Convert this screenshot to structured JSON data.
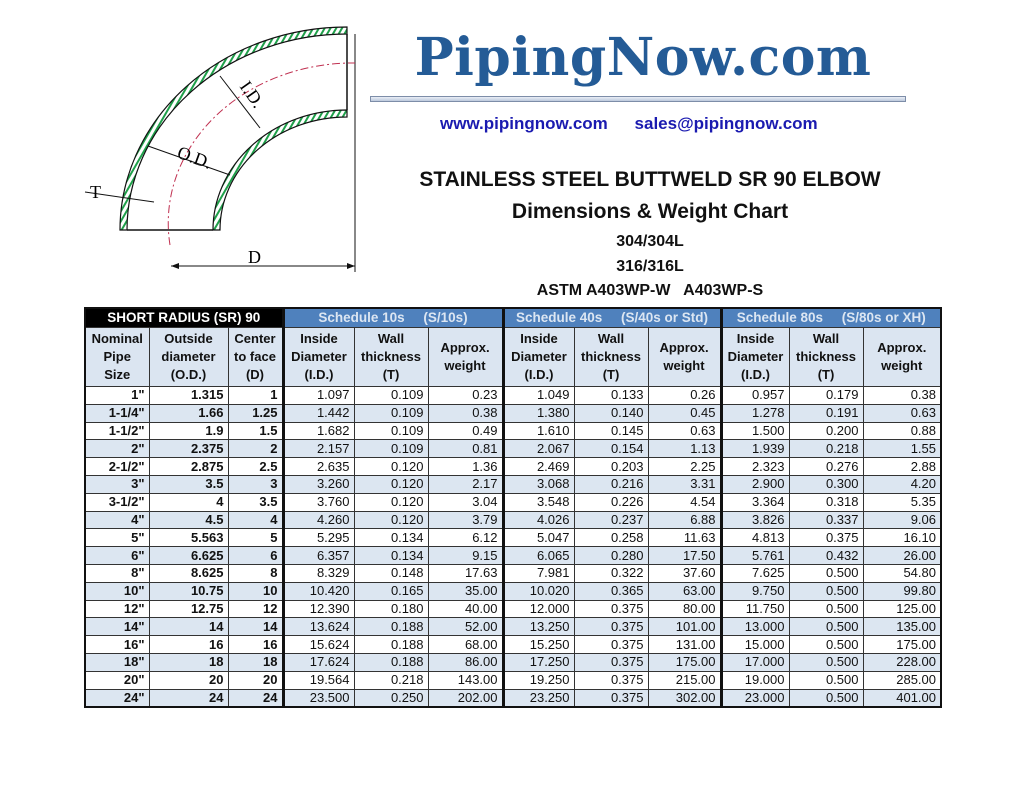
{
  "logo": {
    "text": "PipingNow.com",
    "color": "#245b96"
  },
  "links": {
    "website": "www.pipingnow.com",
    "email": "sales@pipingnow.com"
  },
  "titles": {
    "main": "STAINLESS STEEL BUTTWELD SR 90 ELBOW",
    "sub": "Dimensions & Weight Chart",
    "material1": "304/304L",
    "material2": "316/316L",
    "astm": "ASTM A403WP-W   A403WP-S"
  },
  "drawing": {
    "labels": {
      "id": "I.D.",
      "od": "O.D.",
      "t": "T",
      "d": "D"
    }
  },
  "table": {
    "groups": [
      "SHORT RADIUS (SR) 90",
      "Schedule 10s     (S/10s)",
      "Schedule 40s     (S/40s or Std)",
      "Schedule 80s     (S/80s or XH)"
    ],
    "headers": [
      "Nominal Pipe Size",
      "Outside diameter (O.D.)",
      "Center to face (D)",
      "Inside Diameter (I.D.)",
      "Wall thickness (T)",
      "Approx. weight",
      "Inside Diameter (I.D.)",
      "Wall thickness (T)",
      "Approx. weight",
      "Inside Diameter (I.D.)",
      "Wall thickness (T)",
      "Approx. weight"
    ],
    "rows": [
      [
        "1\"",
        "1.315",
        "1",
        "1.097",
        "0.109",
        "0.23",
        "1.049",
        "0.133",
        "0.26",
        "0.957",
        "0.179",
        "0.38"
      ],
      [
        "1-1/4\"",
        "1.66",
        "1.25",
        "1.442",
        "0.109",
        "0.38",
        "1.380",
        "0.140",
        "0.45",
        "1.278",
        "0.191",
        "0.63"
      ],
      [
        "1-1/2\"",
        "1.9",
        "1.5",
        "1.682",
        "0.109",
        "0.49",
        "1.610",
        "0.145",
        "0.63",
        "1.500",
        "0.200",
        "0.88"
      ],
      [
        "2\"",
        "2.375",
        "2",
        "2.157",
        "0.109",
        "0.81",
        "2.067",
        "0.154",
        "1.13",
        "1.939",
        "0.218",
        "1.55"
      ],
      [
        "2-1/2\"",
        "2.875",
        "2.5",
        "2.635",
        "0.120",
        "1.36",
        "2.469",
        "0.203",
        "2.25",
        "2.323",
        "0.276",
        "2.88"
      ],
      [
        "3\"",
        "3.5",
        "3",
        "3.260",
        "0.120",
        "2.17",
        "3.068",
        "0.216",
        "3.31",
        "2.900",
        "0.300",
        "4.20"
      ],
      [
        "3-1/2\"",
        "4",
        "3.5",
        "3.760",
        "0.120",
        "3.04",
        "3.548",
        "0.226",
        "4.54",
        "3.364",
        "0.318",
        "5.35"
      ],
      [
        "4\"",
        "4.5",
        "4",
        "4.260",
        "0.120",
        "3.79",
        "4.026",
        "0.237",
        "6.88",
        "3.826",
        "0.337",
        "9.06"
      ],
      [
        "5\"",
        "5.563",
        "5",
        "5.295",
        "0.134",
        "6.12",
        "5.047",
        "0.258",
        "11.63",
        "4.813",
        "0.375",
        "16.10"
      ],
      [
        "6\"",
        "6.625",
        "6",
        "6.357",
        "0.134",
        "9.15",
        "6.065",
        "0.280",
        "17.50",
        "5.761",
        "0.432",
        "26.00"
      ],
      [
        "8\"",
        "8.625",
        "8",
        "8.329",
        "0.148",
        "17.63",
        "7.981",
        "0.322",
        "37.60",
        "7.625",
        "0.500",
        "54.80"
      ],
      [
        "10\"",
        "10.75",
        "10",
        "10.420",
        "0.165",
        "35.00",
        "10.020",
        "0.365",
        "63.00",
        "9.750",
        "0.500",
        "99.80"
      ],
      [
        "12\"",
        "12.75",
        "12",
        "12.390",
        "0.180",
        "40.00",
        "12.000",
        "0.375",
        "80.00",
        "11.750",
        "0.500",
        "125.00"
      ],
      [
        "14\"",
        "14",
        "14",
        "13.624",
        "0.188",
        "52.00",
        "13.250",
        "0.375",
        "101.00",
        "13.000",
        "0.500",
        "135.00"
      ],
      [
        "16\"",
        "16",
        "16",
        "15.624",
        "0.188",
        "68.00",
        "15.250",
        "0.375",
        "131.00",
        "15.000",
        "0.500",
        "175.00"
      ],
      [
        "18\"",
        "18",
        "18",
        "17.624",
        "0.188",
        "86.00",
        "17.250",
        "0.375",
        "175.00",
        "17.000",
        "0.500",
        "228.00"
      ],
      [
        "20\"",
        "20",
        "20",
        "19.564",
        "0.218",
        "143.00",
        "19.250",
        "0.375",
        "215.00",
        "19.000",
        "0.500",
        "285.00"
      ],
      [
        "24\"",
        "24",
        "24",
        "23.500",
        "0.250",
        "202.00",
        "23.250",
        "0.375",
        "302.00",
        "23.000",
        "0.500",
        "401.00"
      ]
    ]
  }
}
